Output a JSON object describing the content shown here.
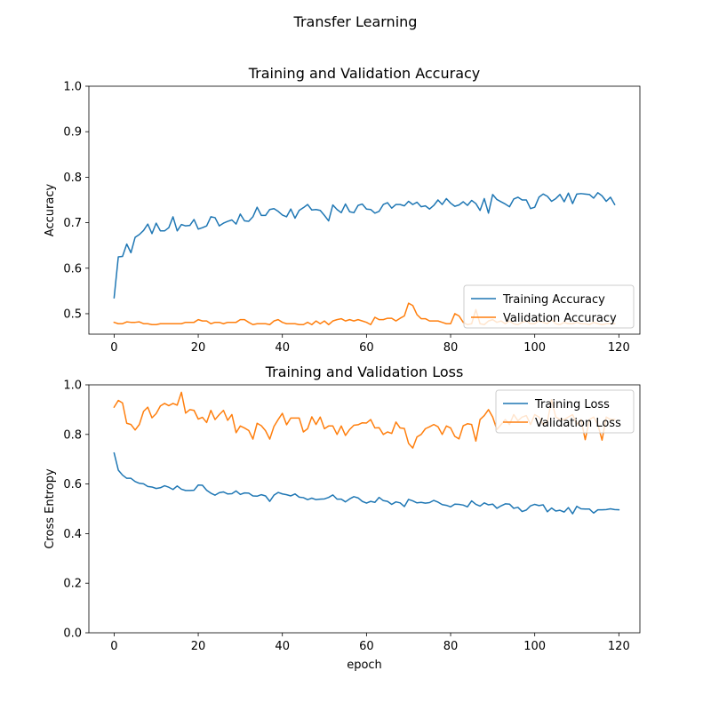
{
  "figure": {
    "suptitle": "Transfer Learning"
  },
  "chart_data": [
    {
      "type": "line",
      "title": "Training and Validation Accuracy",
      "xlabel": "",
      "ylabel": "Accuracy",
      "xlim": [
        -6,
        125
      ],
      "ylim": [
        0.455,
        1.0
      ],
      "xticks": [
        0,
        20,
        40,
        60,
        80,
        100,
        120
      ],
      "yticks": [
        0.5,
        0.6,
        0.7,
        0.8,
        0.9,
        1.0
      ],
      "xtick_labels": [
        "0",
        "20",
        "40",
        "60",
        "80",
        "100",
        "120"
      ],
      "ytick_labels": [
        "0.5",
        "0.6",
        "0.7",
        "0.8",
        "0.9",
        "1.0"
      ],
      "legend_position": "lower-right",
      "series": [
        {
          "name": "Training Accuracy",
          "color": "#1f77b4",
          "values": [
            0.535,
            0.625,
            0.626,
            0.653,
            0.634,
            0.668,
            0.674,
            0.683,
            0.697,
            0.676,
            0.699,
            0.682,
            0.682,
            0.689,
            0.713,
            0.682,
            0.696,
            0.693,
            0.694,
            0.707,
            0.686,
            0.689,
            0.693,
            0.713,
            0.711,
            0.693,
            0.699,
            0.703,
            0.706,
            0.697,
            0.719,
            0.704,
            0.703,
            0.713,
            0.734,
            0.716,
            0.716,
            0.729,
            0.731,
            0.725,
            0.717,
            0.713,
            0.73,
            0.71,
            0.727,
            0.733,
            0.74,
            0.728,
            0.729,
            0.727,
            0.716,
            0.704,
            0.739,
            0.729,
            0.722,
            0.741,
            0.724,
            0.722,
            0.738,
            0.741,
            0.73,
            0.729,
            0.721,
            0.725,
            0.74,
            0.744,
            0.732,
            0.74,
            0.74,
            0.737,
            0.747,
            0.74,
            0.745,
            0.735,
            0.737,
            0.73,
            0.738,
            0.75,
            0.74,
            0.753,
            0.743,
            0.736,
            0.739,
            0.746,
            0.738,
            0.749,
            0.742,
            0.727,
            0.753,
            0.721,
            0.762,
            0.751,
            0.746,
            0.741,
            0.735,
            0.752,
            0.756,
            0.75,
            0.75,
            0.731,
            0.734,
            0.756,
            0.763,
            0.758,
            0.747,
            0.753,
            0.762,
            0.746,
            0.765,
            0.742,
            0.763,
            0.764,
            0.763,
            0.762,
            0.754,
            0.766,
            0.759,
            0.747,
            0.756,
            0.74
          ]
        },
        {
          "name": "Validation Accuracy",
          "color": "#ff7f0e",
          "values": [
            0.481,
            0.478,
            0.478,
            0.482,
            0.481,
            0.481,
            0.482,
            0.478,
            0.478,
            0.476,
            0.476,
            0.478,
            0.478,
            0.478,
            0.478,
            0.478,
            0.478,
            0.481,
            0.481,
            0.481,
            0.487,
            0.484,
            0.484,
            0.478,
            0.481,
            0.481,
            0.478,
            0.481,
            0.481,
            0.481,
            0.487,
            0.487,
            0.481,
            0.476,
            0.478,
            0.478,
            0.478,
            0.476,
            0.484,
            0.487,
            0.481,
            0.478,
            0.478,
            0.478,
            0.476,
            0.476,
            0.481,
            0.476,
            0.484,
            0.478,
            0.484,
            0.476,
            0.484,
            0.487,
            0.489,
            0.484,
            0.487,
            0.484,
            0.487,
            0.484,
            0.481,
            0.476,
            0.492,
            0.487,
            0.487,
            0.49,
            0.49,
            0.484,
            0.49,
            0.495,
            0.523,
            0.518,
            0.498,
            0.489,
            0.489,
            0.484,
            0.484,
            0.484,
            0.481,
            0.478,
            0.478,
            0.5,
            0.495,
            0.481,
            0.476,
            0.478,
            0.509,
            0.478,
            0.476,
            0.484,
            0.487,
            0.481,
            0.484,
            0.478,
            0.484,
            0.478,
            0.476,
            0.481,
            0.484,
            0.478,
            0.478,
            0.484,
            0.481,
            0.478,
            0.487,
            0.478,
            0.476,
            0.481,
            0.478,
            0.478,
            0.481,
            0.478,
            0.478,
            0.476,
            0.481,
            0.478,
            0.476,
            0.478,
            0.478,
            0.478
          ]
        }
      ]
    },
    {
      "type": "line",
      "title": "Training and Validation Loss",
      "xlabel": "epoch",
      "ylabel": "Cross Entropy",
      "xlim": [
        -6,
        125
      ],
      "ylim": [
        0.0,
        1.0
      ],
      "xticks": [
        0,
        20,
        40,
        60,
        80,
        100,
        120
      ],
      "yticks": [
        0.0,
        0.2,
        0.4,
        0.6,
        0.8,
        1.0
      ],
      "xtick_labels": [
        "0",
        "20",
        "40",
        "60",
        "80",
        "100",
        "120"
      ],
      "ytick_labels": [
        "0.0",
        "0.2",
        "0.4",
        "0.6",
        "0.8",
        "1.0"
      ],
      "legend_position": "upper-right",
      "series": [
        {
          "name": "Training Loss",
          "color": "#1f77b4",
          "values": [
            0.725,
            0.656,
            0.636,
            0.623,
            0.623,
            0.61,
            0.603,
            0.601,
            0.59,
            0.588,
            0.582,
            0.585,
            0.593,
            0.587,
            0.578,
            0.592,
            0.579,
            0.574,
            0.574,
            0.575,
            0.596,
            0.595,
            0.575,
            0.563,
            0.555,
            0.565,
            0.568,
            0.56,
            0.561,
            0.572,
            0.558,
            0.564,
            0.563,
            0.552,
            0.551,
            0.557,
            0.552,
            0.53,
            0.555,
            0.566,
            0.56,
            0.557,
            0.552,
            0.56,
            0.547,
            0.545,
            0.537,
            0.543,
            0.537,
            0.539,
            0.54,
            0.546,
            0.556,
            0.539,
            0.539,
            0.528,
            0.54,
            0.549,
            0.544,
            0.53,
            0.523,
            0.53,
            0.526,
            0.546,
            0.533,
            0.53,
            0.518,
            0.528,
            0.524,
            0.509,
            0.538,
            0.532,
            0.524,
            0.526,
            0.523,
            0.525,
            0.534,
            0.527,
            0.517,
            0.514,
            0.508,
            0.519,
            0.518,
            0.515,
            0.508,
            0.532,
            0.518,
            0.511,
            0.524,
            0.516,
            0.519,
            0.502,
            0.512,
            0.52,
            0.519,
            0.502,
            0.506,
            0.489,
            0.495,
            0.512,
            0.518,
            0.513,
            0.516,
            0.488,
            0.503,
            0.491,
            0.494,
            0.487,
            0.505,
            0.48,
            0.51,
            0.5,
            0.499,
            0.499,
            0.483,
            0.496,
            0.496,
            0.497,
            0.5,
            0.497,
            0.496
          ]
        },
        {
          "name": "Validation Loss",
          "color": "#ff7f0e",
          "values": [
            0.91,
            0.937,
            0.927,
            0.845,
            0.84,
            0.818,
            0.84,
            0.893,
            0.91,
            0.867,
            0.884,
            0.915,
            0.925,
            0.916,
            0.925,
            0.918,
            0.97,
            0.886,
            0.9,
            0.897,
            0.862,
            0.869,
            0.848,
            0.897,
            0.86,
            0.88,
            0.897,
            0.857,
            0.88,
            0.807,
            0.834,
            0.826,
            0.816,
            0.781,
            0.845,
            0.835,
            0.815,
            0.781,
            0.832,
            0.86,
            0.885,
            0.839,
            0.866,
            0.866,
            0.866,
            0.81,
            0.823,
            0.871,
            0.84,
            0.87,
            0.823,
            0.834,
            0.834,
            0.8,
            0.834,
            0.796,
            0.82,
            0.837,
            0.839,
            0.847,
            0.846,
            0.86,
            0.826,
            0.827,
            0.8,
            0.81,
            0.804,
            0.85,
            0.826,
            0.824,
            0.764,
            0.745,
            0.79,
            0.8,
            0.823,
            0.831,
            0.84,
            0.831,
            0.8,
            0.834,
            0.826,
            0.792,
            0.782,
            0.835,
            0.843,
            0.84,
            0.773,
            0.86,
            0.876,
            0.9,
            0.87,
            0.82,
            0.84,
            0.86,
            0.84,
            0.88,
            0.855,
            0.87,
            0.876,
            0.84,
            0.88,
            0.87,
            0.84,
            0.85,
            0.94,
            0.87,
            0.86,
            0.86,
            0.87,
            0.88,
            0.84,
            0.86,
            0.779,
            0.86,
            0.87,
            0.84,
            0.777,
            0.87,
            0.86,
            0.86
          ]
        }
      ]
    }
  ]
}
